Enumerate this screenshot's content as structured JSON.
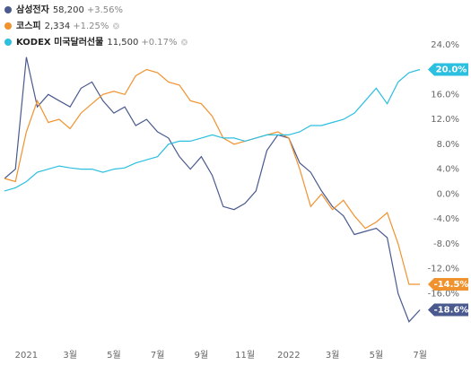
{
  "chart_data": {
    "type": "line",
    "x": [
      -1,
      -0.5,
      0,
      0.5,
      1,
      1.5,
      2,
      2.5,
      3,
      3.5,
      4,
      4.5,
      5,
      5.5,
      6,
      6.5,
      7,
      7.5,
      8,
      8.5,
      9,
      9.5,
      10,
      10.5,
      11,
      11.5,
      12,
      12.5,
      13,
      13.5,
      14,
      14.5,
      15,
      15.5,
      16,
      16.5,
      17,
      17.5,
      18
    ],
    "xlim": [
      -1,
      18.2
    ],
    "xticks": [
      {
        "value": 0,
        "label": "2021"
      },
      {
        "value": 2,
        "label": "3월"
      },
      {
        "value": 4,
        "label": "5월"
      },
      {
        "value": 6,
        "label": "7월"
      },
      {
        "value": 8,
        "label": "9월"
      },
      {
        "value": 10,
        "label": "11월"
      },
      {
        "value": 12,
        "label": "2022"
      },
      {
        "value": 14,
        "label": "3월"
      },
      {
        "value": 16,
        "label": "5월"
      },
      {
        "value": 18,
        "label": "7월"
      }
    ],
    "ylim": [
      -24,
      28
    ],
    "yticks": [
      {
        "value": 24,
        "label": "24.0%"
      },
      {
        "value": 20,
        "label": "20.0%"
      },
      {
        "value": 16,
        "label": "16.0%"
      },
      {
        "value": 12,
        "label": "12.0%"
      },
      {
        "value": 8,
        "label": "8.0%"
      },
      {
        "value": 4,
        "label": "4.0%"
      },
      {
        "value": 0,
        "label": "0.0%"
      },
      {
        "value": -4,
        "label": "-4.0%"
      },
      {
        "value": -8,
        "label": "-8.0%"
      },
      {
        "value": -12,
        "label": "-12.0%"
      },
      {
        "value": -16,
        "label": "-16.0%"
      }
    ],
    "series": [
      {
        "name": "삼성전자",
        "price": "58,200",
        "change": "+3.56%",
        "color": "#4a5a8e",
        "end_label": "-18.6%",
        "values": [
          2.5,
          4,
          22,
          14,
          16,
          15,
          14,
          17,
          18,
          15,
          13,
          14,
          11,
          12,
          10,
          9,
          6,
          4,
          6,
          3,
          -2,
          -2.5,
          -1.5,
          0.5,
          7,
          9.5,
          9,
          5,
          3.5,
          0.5,
          -2,
          -3.5,
          -6.5,
          -6,
          -5.5,
          -7,
          -16,
          -20.5,
          -18.6
        ]
      },
      {
        "name": "코스피",
        "price": "2,334",
        "change": "+1.25%",
        "color": "#f0922e",
        "end_label": "-14.5%",
        "values": [
          2.5,
          2,
          10,
          15,
          11.5,
          12,
          10.5,
          13,
          14.5,
          16,
          16.5,
          16,
          19,
          20,
          19.5,
          18,
          17.5,
          15,
          14.5,
          12.5,
          9,
          8,
          8.5,
          9,
          9.5,
          10,
          9,
          4,
          -2,
          0,
          -2.5,
          -1,
          -3.5,
          -5.5,
          -4.5,
          -3,
          -8,
          -14.5,
          -14.5
        ]
      },
      {
        "name": "KODEX 미국달러선물",
        "price": "11,500",
        "change": "+0.17%",
        "color": "#2bbfe0",
        "end_label": "20.0%",
        "values": [
          0.5,
          1,
          2,
          3.5,
          4,
          4.5,
          4.2,
          4,
          4,
          3.5,
          4,
          4.2,
          5,
          5.5,
          6,
          8,
          8.5,
          8.5,
          9,
          9.5,
          9,
          9,
          8.5,
          9,
          9.5,
          9.5,
          9.5,
          10,
          11,
          11,
          11.5,
          12,
          13,
          15,
          17,
          14.5,
          18,
          19.5,
          20
        ]
      }
    ]
  }
}
